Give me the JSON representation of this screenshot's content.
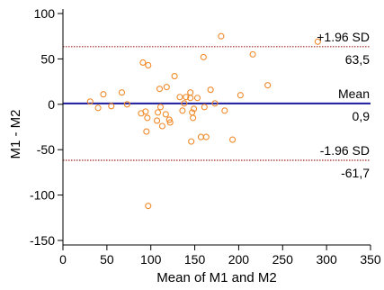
{
  "chart_data": {
    "type": "scatter",
    "subtype": "bland-altman",
    "xlabel": "Mean of M1 and M2",
    "ylabel": "M1 - M2",
    "xlim": [
      0,
      350
    ],
    "ylim": [
      -155,
      105
    ],
    "x_ticks": [
      0,
      50,
      100,
      150,
      200,
      250,
      300,
      350
    ],
    "y_ticks": [
      -150,
      -100,
      -50,
      0,
      50,
      100
    ],
    "grid": false,
    "colors": {
      "points": "#f08a2a",
      "mean_line": "#1c1c9c",
      "limit_lines": "#a02828",
      "axis": "#000000"
    },
    "reference_lines": [
      {
        "name": "upper_loa",
        "label": "+1.96 SD",
        "value_text": "63,5",
        "y": 63.5,
        "style": "dotted"
      },
      {
        "name": "mean",
        "label": "Mean",
        "value_text": "0,9",
        "y": 0.9,
        "style": "solid"
      },
      {
        "name": "lower_loa",
        "label": "-1.96 SD",
        "value_text": "-61,7",
        "y": -61.7,
        "style": "dotted"
      }
    ],
    "points": [
      {
        "x": 31,
        "y": 3
      },
      {
        "x": 40,
        "y": -4
      },
      {
        "x": 46,
        "y": 11
      },
      {
        "x": 55,
        "y": -2
      },
      {
        "x": 67,
        "y": 13
      },
      {
        "x": 73,
        "y": 0
      },
      {
        "x": 89,
        "y": -10
      },
      {
        "x": 91,
        "y": 46
      },
      {
        "x": 94,
        "y": -8
      },
      {
        "x": 95,
        "y": -30
      },
      {
        "x": 96,
        "y": -15
      },
      {
        "x": 97,
        "y": 43
      },
      {
        "x": 97,
        "y": -112
      },
      {
        "x": 107,
        "y": -18
      },
      {
        "x": 108,
        "y": -9
      },
      {
        "x": 110,
        "y": 17
      },
      {
        "x": 111,
        "y": -3
      },
      {
        "x": 113,
        "y": -24
      },
      {
        "x": 117,
        "y": -11
      },
      {
        "x": 118,
        "y": 19
      },
      {
        "x": 121,
        "y": -17
      },
      {
        "x": 122,
        "y": -20
      },
      {
        "x": 127,
        "y": 31
      },
      {
        "x": 133,
        "y": 8
      },
      {
        "x": 136,
        "y": -7
      },
      {
        "x": 138,
        "y": 1
      },
      {
        "x": 140,
        "y": 8
      },
      {
        "x": 145,
        "y": 13
      },
      {
        "x": 145,
        "y": 7
      },
      {
        "x": 146,
        "y": -41
      },
      {
        "x": 147,
        "y": -9
      },
      {
        "x": 148,
        "y": -15
      },
      {
        "x": 149,
        "y": -5
      },
      {
        "x": 153,
        "y": 7
      },
      {
        "x": 157,
        "y": -36
      },
      {
        "x": 160,
        "y": 52
      },
      {
        "x": 161,
        "y": -3
      },
      {
        "x": 163,
        "y": -36
      },
      {
        "x": 168,
        "y": 16
      },
      {
        "x": 173,
        "y": 1
      },
      {
        "x": 180,
        "y": 75
      },
      {
        "x": 184,
        "y": -7
      },
      {
        "x": 193,
        "y": -39
      },
      {
        "x": 202,
        "y": 10
      },
      {
        "x": 216,
        "y": 55
      },
      {
        "x": 233,
        "y": 21
      },
      {
        "x": 290,
        "y": 69
      }
    ]
  }
}
